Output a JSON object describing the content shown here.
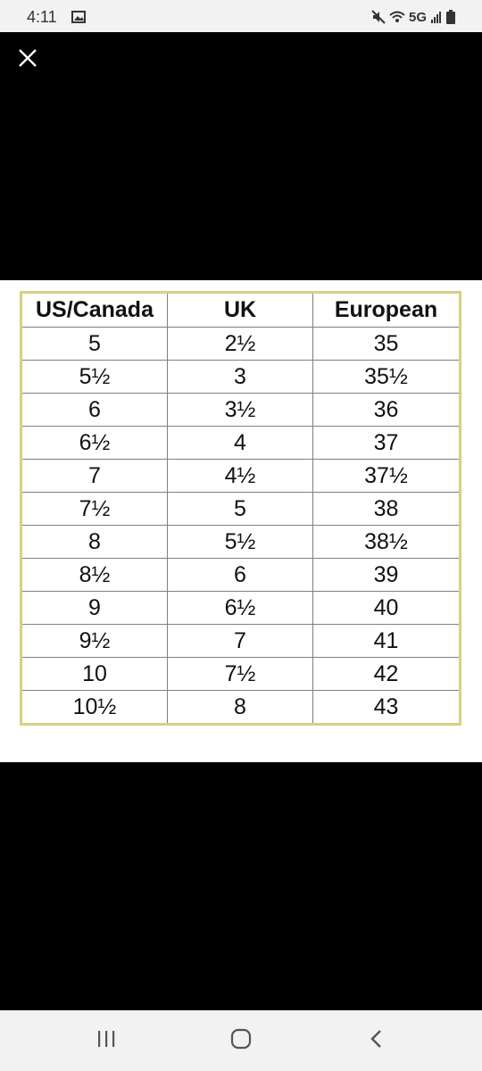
{
  "status_bar": {
    "time": "4:11",
    "network": "5G",
    "icons": [
      "gallery-icon",
      "mute-icon",
      "wifi-icon",
      "signal-icon",
      "battery-icon"
    ]
  },
  "viewer": {
    "close_icon": "close-icon"
  },
  "size_chart": {
    "headers": [
      "US/Canada",
      "UK",
      "European"
    ],
    "rows": [
      [
        "5",
        "2½",
        "35"
      ],
      [
        "5½",
        "3",
        "35½"
      ],
      [
        "6",
        "3½",
        "36"
      ],
      [
        "6½",
        "4",
        "37"
      ],
      [
        "7",
        "4½",
        "37½"
      ],
      [
        "7½",
        "5",
        "38"
      ],
      [
        "8",
        "5½",
        "38½"
      ],
      [
        "8½",
        "6",
        "39"
      ],
      [
        "9",
        "6½",
        "40"
      ],
      [
        "9½",
        "7",
        "41"
      ],
      [
        "10",
        "7½",
        "42"
      ],
      [
        "10½",
        "8",
        "43"
      ]
    ],
    "border_color": "#d9cf82"
  },
  "nav_bar": {
    "buttons": [
      "recents-icon",
      "home-icon",
      "back-icon"
    ]
  }
}
